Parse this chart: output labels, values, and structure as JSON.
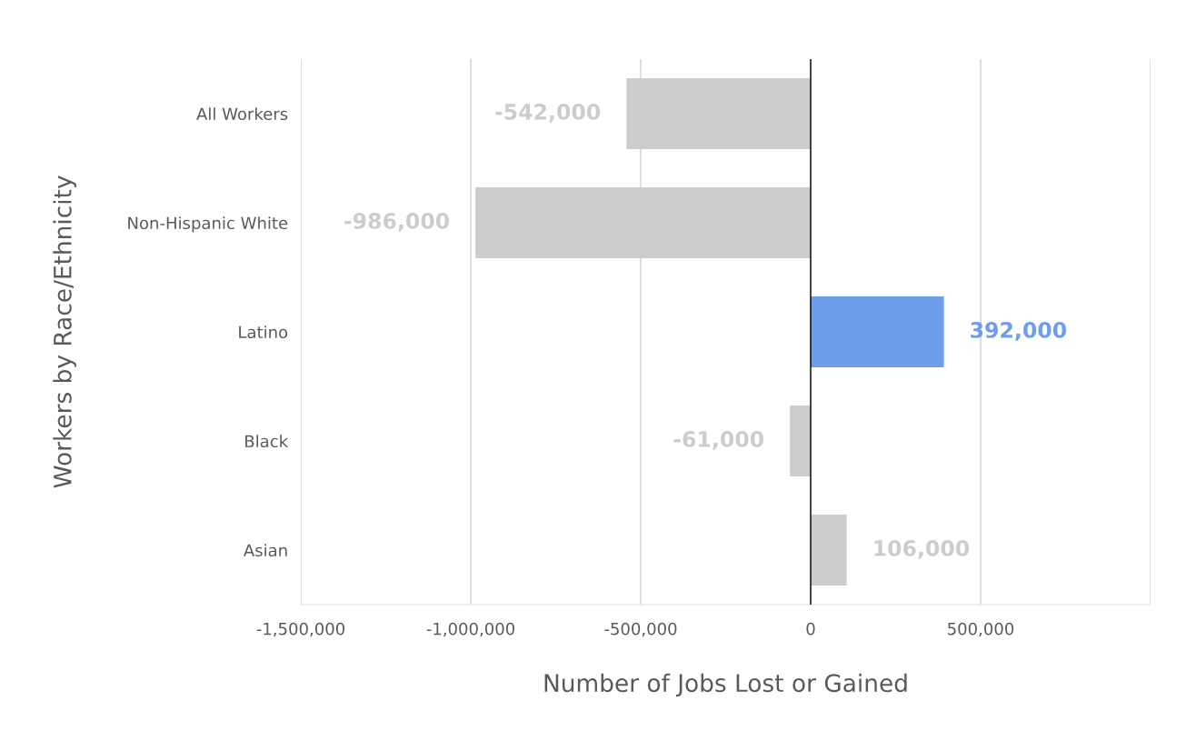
{
  "chart_data": {
    "type": "bar",
    "orientation": "horizontal",
    "xlabel": "Number of Jobs Lost or Gained",
    "ylabel": "Workers by Race/Ethnicity",
    "categories": [
      "All Workers",
      "Non-Hispanic White",
      "Latino",
      "Black",
      "Asian"
    ],
    "values": [
      -542000,
      -986000,
      392000,
      -61000,
      106000
    ],
    "colors": [
      "#cccccc",
      "#cccccc",
      "#6d9eeb",
      "#cccccc",
      "#cccccc"
    ],
    "value_labels": [
      "-542,000",
      "-986,000",
      "392,000",
      "-61,000",
      "106,000"
    ],
    "xlim": [
      -1500000,
      1000000
    ],
    "xticks": [
      {
        "value": -1500000,
        "label": "-1,500,000"
      },
      {
        "value": -1000000,
        "label": "-1,000,000"
      },
      {
        "value": -500000,
        "label": "-500,000"
      },
      0,
      {
        "value": 500000,
        "label": "500,000"
      },
      {
        "value": 1000000,
        "label": null
      }
    ],
    "ref_lines": [
      {
        "axis": "x",
        "value": 0,
        "color": "#000000"
      }
    ],
    "grid": "x",
    "legend": false
  }
}
